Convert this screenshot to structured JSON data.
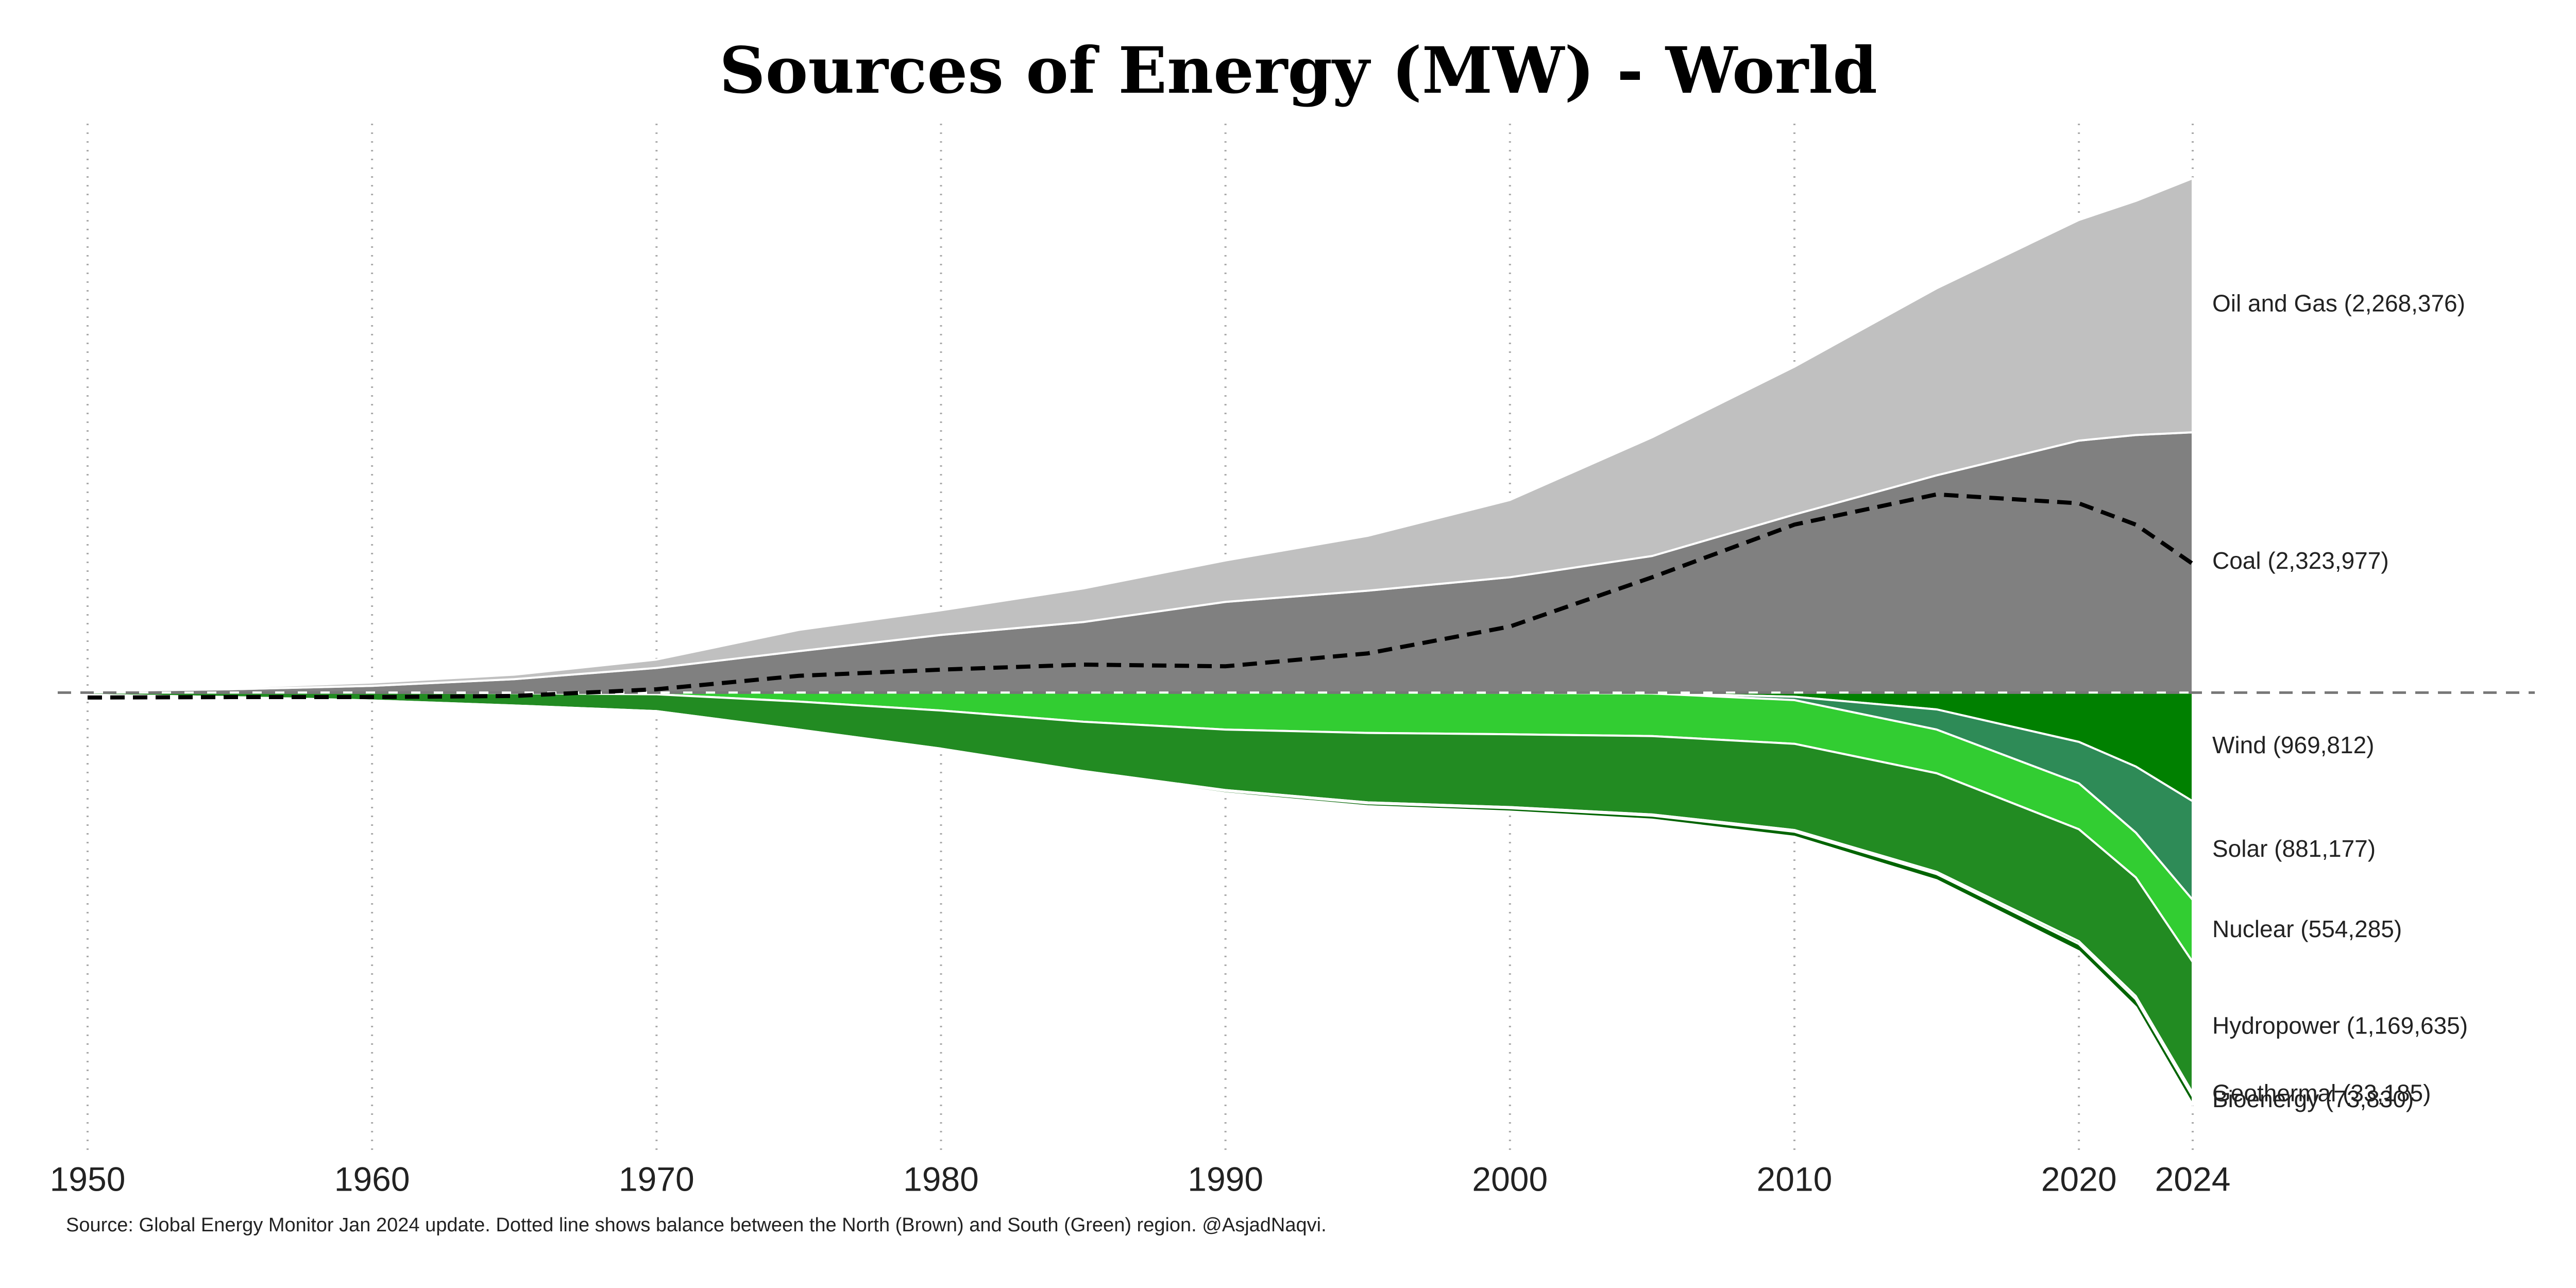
{
  "chart_data": {
    "type": "stream",
    "title": "Sources of Energy (MW) - World",
    "source": "Source: Global Energy Monitor Jan 2024 update. Dotted line shows balance between the North (Brown) and South (Green) region. @AsjadNaqvi.",
    "x": [
      1950,
      1955,
      1960,
      1965,
      1970,
      1975,
      1980,
      1985,
      1990,
      1995,
      2000,
      2005,
      2010,
      2015,
      2020,
      2022,
      2024
    ],
    "xlim": [
      1950,
      2024
    ],
    "xticks": [
      1950,
      1960,
      1970,
      1980,
      1990,
      2000,
      2010,
      2020,
      2024
    ],
    "ylim": [
      -4120000,
      5080000
    ],
    "grid": true,
    "series": [
      {
        "name": "Coal",
        "end_label": "Coal (2,323,977)",
        "stack": "up",
        "color": "#808080",
        "values": [
          15000,
          30000,
          60000,
          120000,
          220000,
          370000,
          515000,
          630000,
          810000,
          910000,
          1030000,
          1220000,
          1590000,
          1940000,
          2250000,
          2300000,
          2323977
        ]
      },
      {
        "name": "Oil and Gas",
        "end_label": "Oil and Gas (2,268,376)",
        "stack": "up",
        "color": "#c0c0c0",
        "values": [
          10000,
          15000,
          30000,
          40000,
          75000,
          190000,
          220000,
          300000,
          370000,
          490000,
          690000,
          1060000,
          1320000,
          1670000,
          1970000,
          2090000,
          2268376
        ]
      },
      {
        "name": "Wind",
        "end_label": "Wind (969,812)",
        "stack": "down",
        "color": "#008000",
        "values": [
          0,
          0,
          0,
          0,
          0,
          0,
          0,
          0,
          0,
          0,
          1000,
          5000,
          37000,
          150000,
          440000,
          660000,
          969812
        ]
      },
      {
        "name": "Solar",
        "end_label": "Solar (881,177)",
        "stack": "down",
        "color": "#2e8b57",
        "values": [
          0,
          0,
          0,
          0,
          0,
          0,
          0,
          0,
          0,
          0,
          1000,
          3000,
          30000,
          180000,
          370000,
          590000,
          881177
        ]
      },
      {
        "name": "Nuclear",
        "end_label": "Nuclear (554,285)",
        "stack": "down",
        "color": "#32cd32",
        "values": [
          0,
          0,
          0,
          5000,
          15000,
          80000,
          160000,
          260000,
          330000,
          360000,
          370000,
          380000,
          390000,
          390000,
          410000,
          400000,
          554285
        ]
      },
      {
        "name": "Hydropower",
        "end_label": "Hydropower (1,169,635)",
        "stack": "down",
        "color": "#228b22",
        "values": [
          20000,
          40000,
          70000,
          110000,
          150000,
          250000,
          340000,
          440000,
          540000,
          620000,
          650000,
          700000,
          770000,
          880000,
          1000000,
          1060000,
          1169635
        ]
      },
      {
        "name": "Geothermal",
        "end_label": "Geothermal (33,185)",
        "stack": "down",
        "color": "#90ee90",
        "values": [
          0,
          0,
          1000,
          1000,
          1000,
          2000,
          4000,
          6000,
          8000,
          9000,
          10000,
          11000,
          15000,
          20000,
          25000,
          28000,
          33185
        ]
      },
      {
        "name": "Bioenergy",
        "end_label": "Bioenergy (73,830)",
        "stack": "down",
        "color": "#006400",
        "values": [
          1000,
          2000,
          3000,
          4000,
          5000,
          7000,
          10000,
          15000,
          20000,
          25000,
          30000,
          35000,
          45000,
          55000,
          65000,
          70000,
          73830
        ]
      }
    ],
    "balance_line": {
      "color": "#000000",
      "style": "dashed",
      "values": [
        -44000,
        -40000,
        -40000,
        -30000,
        30000,
        150000,
        205000,
        250000,
        235000,
        350000,
        590000,
        1030000,
        1500000,
        1770000,
        1690000,
        1500000,
        1150000
      ]
    }
  }
}
